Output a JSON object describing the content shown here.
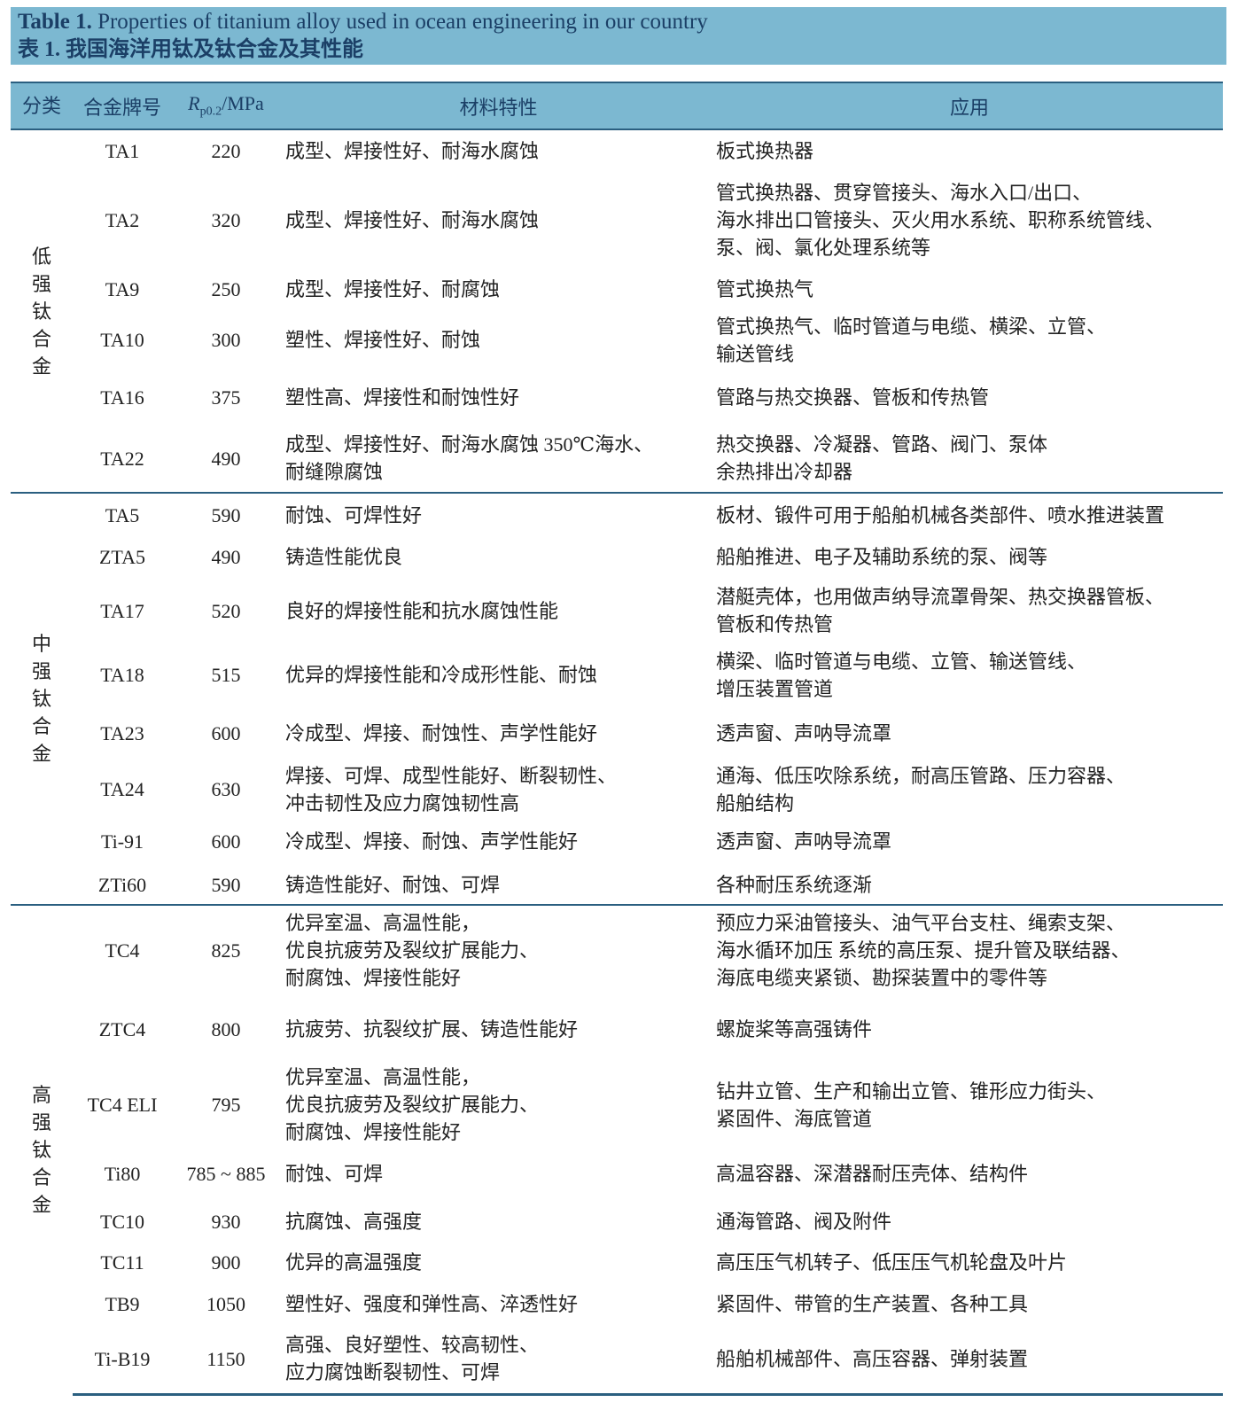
{
  "caption": {
    "en_label": "Table 1.",
    "en_text": " Properties of titanium alloy used in ocean engineering in our country",
    "zh": "表 1.  我国海洋用钛及钛合金及其性能"
  },
  "header": {
    "category": "分类",
    "grade": "合金牌号",
    "rp_symbol": "R",
    "rp_sub": "p0.2",
    "rp_unit": "/MPa",
    "properties": "材料特性",
    "application": "应用"
  },
  "groups": [
    {
      "category": "低强钛合金",
      "rows": [
        {
          "grade": "TA1",
          "rp": "220",
          "properties": "成型、焊接性好、耐海水腐蚀",
          "application": "板式换热器"
        },
        {
          "grade": "TA2",
          "rp": "320",
          "properties": "成型、焊接性好、耐海水腐蚀",
          "application": "管式换热器、贯穿管接头、海水入口/出口、\n海水排出口管接头、灭火用水系统、职称系统管线、\n泵、阀、氯化处理系统等"
        },
        {
          "grade": "TA9",
          "rp": "250",
          "properties": "成型、焊接性好、耐腐蚀",
          "application": "管式换热气"
        },
        {
          "grade": "TA10",
          "rp": "300",
          "properties": "塑性、焊接性好、耐蚀",
          "application": "管式换热气、临时管道与电缆、横梁、立管、\n输送管线"
        },
        {
          "grade": "TA16",
          "rp": "375",
          "properties": "塑性高、焊接性和耐蚀性好",
          "application": "管路与热交换器、管板和传热管"
        },
        {
          "grade": "TA22",
          "rp": "490",
          "properties": "成型、焊接性好、耐海水腐蚀 350℃海水、\n耐缝隙腐蚀",
          "application": "热交换器、冷凝器、管路、阀门、泵体\n余热排出冷却器"
        }
      ]
    },
    {
      "category": "中强钛合金",
      "rows": [
        {
          "grade": "TA5",
          "rp": "590",
          "properties": "耐蚀、可焊性好",
          "application": "板材、锻件可用于船舶机械各类部件、喷水推进装置"
        },
        {
          "grade": "ZTA5",
          "rp": "490",
          "properties": "铸造性能优良",
          "application": "船舶推进、电子及辅助系统的泵、阀等"
        },
        {
          "grade": "TA17",
          "rp": "520",
          "properties": "良好的焊接性能和抗水腐蚀性能",
          "application": "潜艇壳体，也用做声纳导流罩骨架、热交换器管板、\n管板和传热管"
        },
        {
          "grade": "TA18",
          "rp": "515",
          "properties": "优异的焊接性能和冷成形性能、耐蚀",
          "application": "横梁、临时管道与电缆、立管、输送管线、\n增压装置管道"
        },
        {
          "grade": "TA23",
          "rp": "600",
          "properties": "冷成型、焊接、耐蚀性、声学性能好",
          "application": "透声窗、声呐导流罩"
        },
        {
          "grade": "TA24",
          "rp": "630",
          "properties": "焊接、可焊、成型性能好、断裂韧性、\n冲击韧性及应力腐蚀韧性高",
          "application": "通海、低压吹除系统，耐高压管路、压力容器、\n船舶结构"
        },
        {
          "grade": "Ti-91",
          "rp": "600",
          "properties": "冷成型、焊接、耐蚀、声学性能好",
          "application": "透声窗、声呐导流罩"
        },
        {
          "grade": "ZTi60",
          "rp": "590",
          "properties": "铸造性能好、耐蚀、可焊",
          "application": "各种耐压系统逐渐"
        }
      ]
    },
    {
      "category": "高强钛合金",
      "rows": [
        {
          "grade": "TC4",
          "rp": "825",
          "properties": "优异室温、高温性能，\n优良抗疲劳及裂纹扩展能力、\n耐腐蚀、焊接性能好",
          "application": "预应力采油管接头、油气平台支柱、绳索支架、\n海水循环加压  系统的高压泵、提升管及联结器、\n海底电缆夹紧锁、勘探装置中的零件等"
        },
        {
          "grade": "ZTC4",
          "rp": "800",
          "properties": "抗疲劳、抗裂纹扩展、铸造性能好",
          "application": "螺旋桨等高强铸件"
        },
        {
          "grade": "TC4 ELI",
          "rp": "795",
          "properties": "优异室温、高温性能，\n优良抗疲劳及裂纹扩展能力、\n耐腐蚀、焊接性能好",
          "application": "钻井立管、生产和输出立管、锥形应力街头、\n紧固件、海底管道"
        },
        {
          "grade": "Ti80",
          "rp": "785 ~ 885",
          "properties": "耐蚀、可焊",
          "application": "高温容器、深潜器耐压壳体、结构件"
        },
        {
          "grade": "TC10",
          "rp": "930",
          "properties": "抗腐蚀、高强度",
          "application": "通海管路、阀及附件"
        },
        {
          "grade": "TC11",
          "rp": "900",
          "properties": "优异的高温强度",
          "application": "高压压气机转子、低压压气机轮盘及叶片"
        },
        {
          "grade": "TB9",
          "rp": "1050",
          "properties": "塑性好、强度和弹性高、淬透性好",
          "application": "紧固件、带管的生产装置、各种工具"
        },
        {
          "grade": "Ti-B19",
          "rp": "1150",
          "properties": "高强、良好塑性、较高韧性、\n应力腐蚀断裂韧性、可焊",
          "application": "船舶机械部件、高压容器、弹射装置"
        }
      ]
    }
  ]
}
